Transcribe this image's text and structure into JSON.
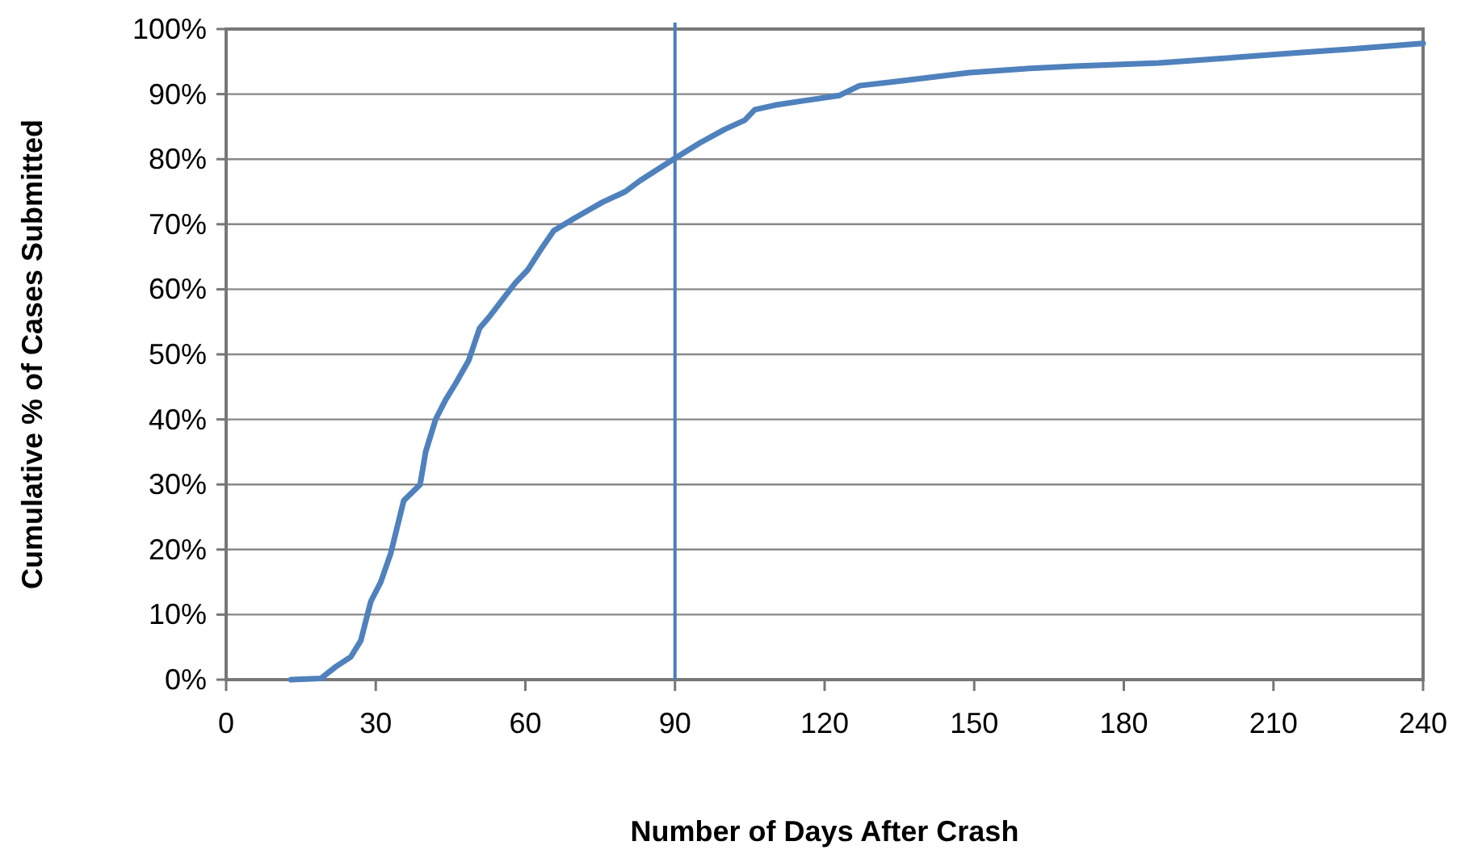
{
  "chart_data": {
    "type": "line",
    "xlabel": "Number of Days After Crash",
    "ylabel": "Cumulative % of Cases Submitted",
    "xlim": [
      0,
      240
    ],
    "xticks": [
      0,
      30,
      60,
      90,
      120,
      150,
      180,
      210,
      240
    ],
    "ylim": [
      0,
      100
    ],
    "yticks": [
      {
        "value": 0,
        "label": "0%"
      },
      {
        "value": 10,
        "label": "10%"
      },
      {
        "value": 20,
        "label": "20%"
      },
      {
        "value": 30,
        "label": "30%"
      },
      {
        "value": 40,
        "label": "40%"
      },
      {
        "value": 50,
        "label": "50%"
      },
      {
        "value": 60,
        "label": "60%"
      },
      {
        "value": 70,
        "label": "70%"
      },
      {
        "value": 80,
        "label": "80%"
      },
      {
        "value": 90,
        "label": "90%"
      },
      {
        "value": 100,
        "label": "100%"
      }
    ],
    "grid": "y",
    "marker": "none",
    "line_style": "solid",
    "series": [
      {
        "color": "#4f81bd",
        "x": [
          13,
          19,
          22,
          25,
          27,
          29,
          31,
          33,
          35.6,
          38.9,
          40,
          42,
          44,
          46,
          48.6,
          50.8,
          53,
          56,
          58,
          60.5,
          63,
          65.7,
          70,
          75.5,
          80,
          83,
          89.7,
          95,
          100,
          104,
          106,
          110,
          116,
          123,
          127,
          135,
          149,
          160,
          170,
          187,
          200,
          214,
          225,
          240
        ],
        "values": [
          0,
          0.2,
          2,
          3.5,
          6,
          12,
          15,
          19.4,
          27.5,
          30,
          35,
          40,
          43,
          45.5,
          49,
          54,
          56,
          59,
          61,
          63,
          66,
          69,
          71,
          73.4,
          75,
          76.7,
          80,
          82.5,
          84.6,
          86,
          87.6,
          88.3,
          89,
          89.8,
          91.3,
          92,
          93.3,
          93.9,
          94.3,
          94.8,
          95.5,
          96.3,
          96.9,
          97.8
        ]
      }
    ],
    "ref_lines": [
      {
        "axis": "x",
        "value": 90,
        "color": "#4a7ebb"
      }
    ]
  }
}
